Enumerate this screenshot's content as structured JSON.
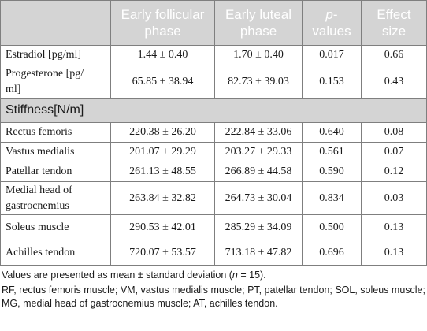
{
  "table": {
    "headers": [
      "",
      "Early follicular phase",
      "Early luteal phase",
      "p-values",
      "Effect size"
    ],
    "header_parts": {
      "col1": [
        "Early follicular",
        "phase"
      ],
      "col2": [
        "Early luteal",
        "phase"
      ],
      "col3_italic": "p",
      "col3_rest": "-",
      "col3_line2": "values",
      "col4": [
        "Effect",
        "size"
      ]
    },
    "hormone_rows": [
      {
        "label": "Estradiol [pg/ml]",
        "follicular": "1.44 ± 0.40",
        "luteal": "1.70 ± 0.40",
        "p": "0.017",
        "effect": "0.66"
      },
      {
        "label": "Progesterone [pg/ml]",
        "label_lines": [
          "Progesterone [pg/",
          "ml]"
        ],
        "follicular": "65.85 ± 38.94",
        "luteal": "82.73 ± 39.03",
        "p": "0.153",
        "effect": "0.43"
      }
    ],
    "section_label": "Stiffness[N/m]",
    "stiffness_rows": [
      {
        "label": "Rectus femoris",
        "follicular": "220.38 ± 26.20",
        "luteal": "222.84 ± 33.06",
        "p": "0.640",
        "effect": "0.08"
      },
      {
        "label": "Vastus medialis",
        "follicular": "201.07 ± 29.29",
        "luteal": "203.27 ± 29.33",
        "p": "0.561",
        "effect": "0.07"
      },
      {
        "label": "Patellar tendon",
        "follicular": "261.13 ± 48.55",
        "luteal": "266.89 ± 44.58",
        "p": "0.590",
        "effect": "0.12"
      },
      {
        "label": "Medial head of gastrocnemius",
        "label_lines": [
          "Medial head of",
          "gastrocnemius"
        ],
        "follicular": "263.84 ± 32.82",
        "luteal": "264.73 ± 30.04",
        "p": "0.834",
        "effect": "0.03"
      },
      {
        "label": "Soleus muscle",
        "follicular": "290.53 ± 42.01",
        "luteal": "285.29 ± 34.09",
        "p": "0.500",
        "effect": "0.13"
      },
      {
        "label": "Achilles tendon",
        "follicular": "720.07 ± 53.57",
        "luteal": "713.18 ± 47.82",
        "p": "0.696",
        "effect": "0.13"
      }
    ]
  },
  "notes": {
    "line1_pre": "Values are presented as mean ± standard deviation (",
    "line1_n": "n",
    "line1_post": " = 15).",
    "abbreviations": "RF, rectus femoris muscle; VM, vastus medialis muscle; PT, patellar tendon; SOL, soleus muscle; MG, medial head of gastrocnemius muscle; AT, achilles tendon."
  },
  "colors": {
    "header_bg": "#d4d4d4",
    "header_text": "#ffffff",
    "border": "#7f7f7f"
  }
}
